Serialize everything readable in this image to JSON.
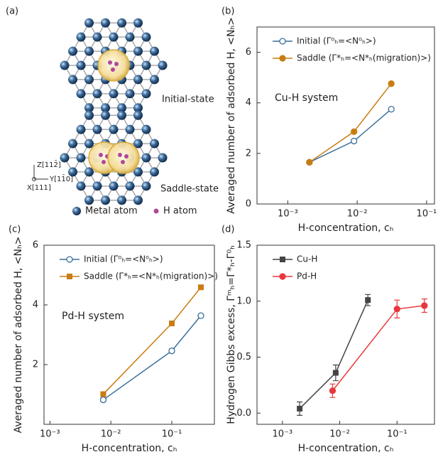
{
  "diagram": {
    "label": "(a)",
    "initial": "Initial-state",
    "saddle": "Saddle-state",
    "metal": "Metal atom",
    "h_atom": "H atom",
    "axis_z": "Z[112̄]",
    "axis_y": "Y[11̄0]",
    "axis_x": "X[111]"
  },
  "chart_data": [
    {
      "type": "line",
      "label": "(b)",
      "annotation": "Cu-H system",
      "xlabel": "H-concentration, cₕ",
      "ylabel": "Averaged number of adsorbed H, <Nₕ>",
      "xscale": "log",
      "xlim": [
        0.00036,
        0.13
      ],
      "ylim": [
        0,
        7
      ],
      "xticks": [
        {
          "value": 0.001,
          "label": "10⁻³"
        },
        {
          "value": 0.01,
          "label": "10⁻²"
        },
        {
          "value": 0.1,
          "label": "10⁻¹"
        }
      ],
      "yticks": [
        0,
        2,
        4,
        6
      ],
      "legend": "top-left",
      "x": [
        0.00205,
        0.009,
        0.031
      ],
      "series": [
        {
          "name": "Initial (Γ⁰ₕ=<N⁰ₕ>)",
          "color": "#3a6f9c",
          "marker": "circle-open",
          "values": [
            1.65,
            2.49,
            3.75
          ],
          "errors": [
            0.05,
            0.05,
            0.05
          ]
        },
        {
          "name": "Saddle (Γ*ₕ=<N*ₕ(migration)>)",
          "color": "#c97c12",
          "marker": "circle",
          "values": [
            1.65,
            2.86,
            4.76
          ],
          "errors": [
            0.05,
            0.05,
            0.05
          ]
        }
      ]
    },
    {
      "type": "line",
      "label": "(c)",
      "annotation": "Pd-H system",
      "xlabel": "H-concentration, cₕ",
      "ylabel": "Averaged number of adsorbed H, <Nₕ>",
      "xscale": "log",
      "xlim": [
        0.0008,
        0.5
      ],
      "ylim": [
        0,
        6
      ],
      "xticks": [
        {
          "value": 0.001,
          "label": "10⁻³"
        },
        {
          "value": 0.01,
          "label": "10⁻²"
        },
        {
          "value": 0.1,
          "label": "10⁻¹"
        }
      ],
      "yticks": [
        2,
        4,
        6
      ],
      "legend": "top-left",
      "x": [
        0.0075,
        0.1,
        0.3
      ],
      "series": [
        {
          "name": "Initial (Γ⁰ₕ=<N⁰ₕ>)",
          "color": "#3a6f9c",
          "marker": "circle-open",
          "values": [
            0.82,
            2.46,
            3.64
          ],
          "errors": [
            0.06,
            0.06,
            0.05
          ]
        },
        {
          "name": "Saddle (Γ*ₕ=<N*ₕ(migration)>)",
          "color": "#c97c12",
          "marker": "square",
          "values": [
            1.01,
            3.38,
            4.59
          ],
          "errors": [
            0.06,
            0.06,
            0.05
          ]
        }
      ]
    },
    {
      "type": "errorbar",
      "label": "(d)",
      "xlabel": "H-concentration, cₕ",
      "ylabel": "Hydrogen Gibbs excess, Γᵐₕ=Γ*ₕ-Γ⁰ₕ",
      "xscale": "log",
      "xlim": [
        0.00036,
        0.45
      ],
      "ylim": [
        -0.1,
        1.5
      ],
      "xticks": [
        {
          "value": 0.001,
          "label": "10⁻³"
        },
        {
          "value": 0.01,
          "label": "10⁻²"
        },
        {
          "value": 0.1,
          "label": "10⁻¹"
        }
      ],
      "yticks": [
        {
          "value": 0,
          "label": "0.0"
        },
        0.5,
        {
          "value": 1,
          "label": "1.0"
        },
        1.5
      ],
      "legend": "top-left",
      "series": [
        {
          "name": "Cu-H",
          "color": "#444444",
          "marker": "square",
          "x": [
            0.002,
            0.0085,
            0.031
          ],
          "values": [
            0.04,
            0.36,
            1.01
          ],
          "errors": [
            0.06,
            0.07,
            0.05
          ]
        },
        {
          "name": "Pd-H",
          "color": "#e8383d",
          "marker": "circle",
          "x": [
            0.0075,
            0.1,
            0.3
          ],
          "values": [
            0.2,
            0.93,
            0.96
          ],
          "errors": [
            0.06,
            0.08,
            0.06
          ]
        }
      ]
    }
  ]
}
